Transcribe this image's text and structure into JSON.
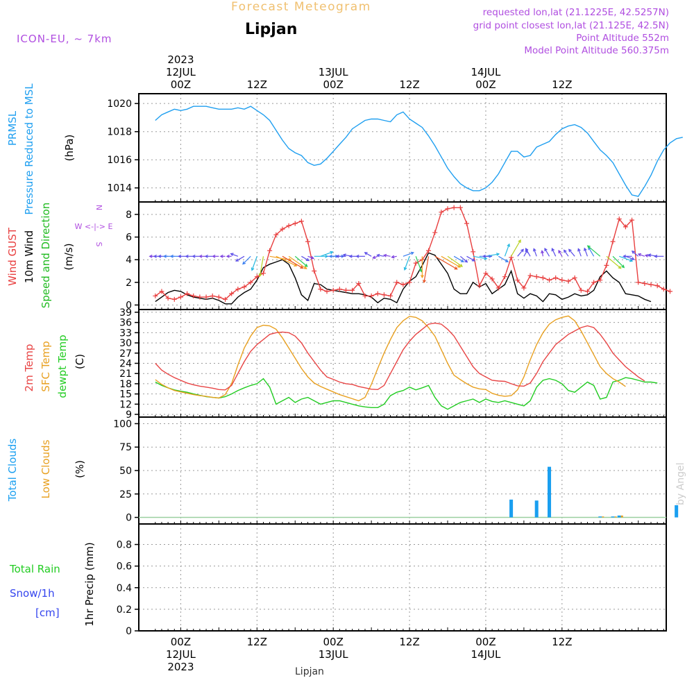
{
  "header": {
    "forecast_title": "Forecast Meteogram",
    "location": "Lipjan",
    "model": "ICON-EU, ~ 7km",
    "requested": "requested lon,lat (21.1225E, 42.5257N)",
    "grid_point": "grid point closest lon,lat (21.125E, 42.5N)",
    "point_altitude": "Point Altitude 552m",
    "model_altitude": "Model Point Altitude 560.375m"
  },
  "footer": {
    "location": "Lipjan",
    "credit": "by Angel"
  },
  "colors": {
    "pressure": "#1f9ff0",
    "gust": "#e83e3e",
    "wind": "#000000",
    "dirlabel": "#20bb20",
    "compass": "#b04ee0",
    "temp2m": "#e84444",
    "sfc": "#e8a020",
    "dewpt": "#22cc22",
    "cloud_total": "#1a9ff0",
    "cloud_low": "#e8a020",
    "rain": "#22cc22",
    "snow": "#3344ee",
    "header_purple": "#b04ee0",
    "header_orange": "#f0c070"
  },
  "chart_data": [
    {
      "type": "line",
      "title": "PRMSL Pressure Reduced to MSL",
      "ylabel": "(hPa)",
      "label_lines": [
        "PRMSL",
        "Pressure Reduced to MSL"
      ],
      "unit": "(hPa)",
      "ylim": [
        1013,
        1020.7
      ],
      "yticks": [
        1014,
        1016,
        1018,
        1020
      ],
      "x_start_hour": -4,
      "x_step_hours": 1,
      "series": [
        {
          "name": "PRMSL",
          "values": [
            1018.8,
            1019.2,
            1019.4,
            1019.6,
            1019.5,
            1019.6,
            1019.8,
            1019.8,
            1019.8,
            1019.7,
            1019.6,
            1019.6,
            1019.6,
            1019.7,
            1019.6,
            1019.8,
            1019.5,
            1019.2,
            1018.8,
            1018.1,
            1017.4,
            1016.8,
            1016.5,
            1016.3,
            1015.8,
            1015.6,
            1015.7,
            1016.1,
            1016.6,
            1017.1,
            1017.6,
            1018.2,
            1018.5,
            1018.8,
            1018.9,
            1018.9,
            1018.8,
            1018.7,
            1019.2,
            1019.4,
            1018.9,
            1018.6,
            1018.3,
            1017.7,
            1017.0,
            1016.2,
            1015.4,
            1014.8,
            1014.3,
            1014.0,
            1013.8,
            1013.8,
            1014.0,
            1014.4,
            1015.0,
            1015.8,
            1016.6,
            1016.6,
            1016.2,
            1016.3,
            1016.9,
            1017.1,
            1017.3,
            1017.8,
            1018.2,
            1018.4,
            1018.5,
            1018.3,
            1017.9,
            1017.3,
            1016.7,
            1016.3,
            1015.8,
            1015.0,
            1014.2,
            1013.5,
            1013.4,
            1014.1,
            1014.9,
            1015.9,
            1016.7,
            1017.2,
            1017.5,
            1017.6
          ]
        }
      ]
    },
    {
      "type": "line",
      "title": "Wind GUST / 10m Wind Speed and Direction",
      "ylabel": "(m/s)",
      "label_lines": [
        "Wind GUST",
        "10m Wind",
        "Speed and Direction"
      ],
      "unit": "(m/s)",
      "compass": [
        "N",
        "W <-|-> E",
        "S"
      ],
      "ylim": [
        -0.4,
        9.1
      ],
      "yticks": [
        0,
        2,
        4,
        6,
        8
      ],
      "x_start_hour": -4,
      "x_step_hours": 1,
      "series": [
        {
          "name": "Wind GUST",
          "values": [
            0.8,
            1.2,
            0.6,
            0.5,
            0.7,
            1.0,
            0.8,
            0.7,
            0.7,
            0.8,
            0.7,
            0.5,
            1.0,
            1.4,
            1.6,
            2.0,
            2.5,
            2.8,
            4.8,
            6.2,
            6.7,
            7.0,
            7.2,
            7.4,
            5.6,
            3.0,
            1.4,
            1.2,
            1.3,
            1.4,
            1.3,
            1.3,
            1.9,
            0.8,
            0.8,
            1.0,
            0.9,
            0.8,
            2.0,
            1.8,
            2.0,
            3.7,
            4.0,
            4.8,
            6.4,
            8.2,
            8.5,
            8.6,
            8.6,
            7.2,
            4.7,
            1.7,
            2.8,
            2.3,
            1.5,
            2.5,
            4.2,
            2.2,
            1.5,
            2.6,
            2.5,
            2.4,
            2.2,
            2.4,
            2.2,
            2.1,
            2.4,
            1.3,
            1.2,
            2.0,
            2.2,
            3.5,
            5.6,
            7.6,
            6.9,
            7.5,
            2.0,
            1.9,
            1.8,
            1.7,
            1.4,
            1.2
          ]
        },
        {
          "name": "10m Wind",
          "values": [
            0.3,
            0.7,
            1.1,
            1.3,
            1.2,
            0.9,
            0.7,
            0.6,
            0.5,
            0.6,
            0.4,
            0.1,
            0.1,
            0.7,
            1.1,
            1.4,
            2.2,
            3.3,
            3.6,
            3.8,
            4.0,
            3.6,
            2.4,
            0.9,
            0.4,
            1.9,
            1.8,
            1.4,
            1.3,
            1.2,
            1.1,
            1.0,
            1.0,
            0.9,
            0.7,
            0.2,
            0.6,
            0.5,
            0.2,
            1.4,
            2.1,
            2.5,
            3.5,
            4.6,
            4.4,
            3.6,
            2.8,
            1.4,
            1.0,
            1.0,
            2.0,
            1.6,
            1.9,
            1.0,
            1.4,
            1.8,
            3.0,
            1.0,
            0.6,
            1.0,
            0.8,
            0.3,
            1.0,
            0.9,
            0.5,
            0.7,
            1.0,
            0.8,
            0.9,
            1.3,
            2.5,
            3.0,
            2.4,
            2.0,
            1.0,
            0.9,
            0.8,
            0.5,
            0.3
          ]
        }
      ],
      "wind_direction_deg": [
        90,
        90,
        90,
        90,
        90,
        90,
        90,
        90,
        90,
        90,
        90,
        90,
        90,
        110,
        60,
        45,
        20,
        10,
        280,
        295,
        300,
        305,
        310,
        300,
        290,
        270,
        250,
        270,
        270,
        90,
        90,
        100,
        90,
        90,
        120,
        70,
        100,
        100,
        80,
        250,
        20,
        340,
        360,
        10,
        300,
        300,
        305,
        300,
        310,
        300,
        280,
        270,
        260,
        90,
        300,
        200,
        210,
        220,
        210,
        150,
        160,
        170,
        150,
        155,
        150,
        145,
        140,
        160,
        160,
        150,
        130,
        310,
        315,
        290,
        290,
        90,
        130,
        110,
        100,
        100,
        90
      ]
    },
    {
      "type": "line",
      "title": "2m Temp / SFC Temp / dewpt Temp",
      "ylabel": "(C)",
      "label_lines": [
        "2m Temp",
        "SFC Temp",
        "dewpt Temp"
      ],
      "unit": "(C)",
      "ylim": [
        8.2,
        39.8
      ],
      "yticks": [
        9,
        12,
        15,
        18,
        21,
        24,
        27,
        30,
        33,
        36,
        39
      ],
      "x_start_hour": -4,
      "x_step_hours": 1,
      "series": [
        {
          "name": "2m Temp",
          "values": [
            24.0,
            22.0,
            20.8,
            19.8,
            19.0,
            18.2,
            17.7,
            17.3,
            17.0,
            16.7,
            16.3,
            16.2,
            17.5,
            21.0,
            24.5,
            27.5,
            29.5,
            31.0,
            32.5,
            33.0,
            33.2,
            33.0,
            32.0,
            30.0,
            27.0,
            24.5,
            22.0,
            20.0,
            19.3,
            18.5,
            18.0,
            17.8,
            17.2,
            16.8,
            16.4,
            16.3,
            17.5,
            21.0,
            24.5,
            28.0,
            30.5,
            32.5,
            34.0,
            35.5,
            35.8,
            35.5,
            34.0,
            32.0,
            29.0,
            26.0,
            23.0,
            21.0,
            20.0,
            19.0,
            18.8,
            18.7,
            18.0,
            17.4,
            17.3,
            18.2,
            21.0,
            24.5,
            27.0,
            29.5,
            31.0,
            32.5,
            33.5,
            34.5,
            35.0,
            34.5,
            32.5,
            30.0,
            27.0,
            25.0,
            23.0,
            21.5,
            20.0,
            18.8
          ]
        },
        {
          "name": "SFC Temp",
          "values": [
            19.2,
            17.8,
            16.8,
            16.0,
            15.6,
            15.2,
            14.8,
            14.5,
            14.3,
            14.0,
            13.8,
            14.8,
            18.0,
            23.5,
            28.5,
            32.0,
            34.5,
            35.2,
            35.0,
            34.0,
            31.5,
            28.5,
            25.5,
            22.5,
            20.0,
            18.2,
            17.2,
            16.4,
            15.6,
            14.8,
            14.2,
            13.6,
            13.0,
            14.0,
            17.8,
            22.5,
            27.0,
            31.0,
            34.5,
            36.5,
            37.8,
            37.5,
            36.5,
            34.5,
            32.0,
            28.0,
            24.0,
            20.5,
            19.2,
            18.0,
            17.0,
            16.5,
            16.3,
            15.2,
            14.6,
            14.3,
            14.5,
            16.2,
            20.0,
            25.0,
            29.5,
            33.0,
            35.5,
            36.8,
            37.5,
            37.9,
            36.5,
            33.5,
            30.0,
            26.5,
            23.0,
            21.0,
            19.5,
            18.5,
            17.2
          ]
        },
        {
          "name": "dewpt Temp",
          "values": [
            18.5,
            17.5,
            16.8,
            16.2,
            15.8,
            15.5,
            15.0,
            14.6,
            14.2,
            14.0,
            13.8,
            14.2,
            15.0,
            16.0,
            16.8,
            17.5,
            18.0,
            19.5,
            17.0,
            12.0,
            13.0,
            14.0,
            12.5,
            13.5,
            14.0,
            13.0,
            12.0,
            12.5,
            13.0,
            13.0,
            12.5,
            12.0,
            11.5,
            11.2,
            11.0,
            11.0,
            12.0,
            14.5,
            15.5,
            16.0,
            17.0,
            16.2,
            16.8,
            17.5,
            14.0,
            11.5,
            10.5,
            11.5,
            12.5,
            13.0,
            13.5,
            12.5,
            13.5,
            12.8,
            12.5,
            13.0,
            12.5,
            12.0,
            11.5,
            13.0,
            17.0,
            19.0,
            19.5,
            19.0,
            18.0,
            16.0,
            15.5,
            17.0,
            18.5,
            17.5,
            13.5,
            14.0,
            18.5,
            19.0,
            19.8,
            19.5,
            19.0,
            18.5,
            18.5,
            18.2
          ]
        }
      ]
    },
    {
      "type": "bar",
      "title": "Total Clouds / Low Clouds",
      "ylabel": "(%)",
      "label_lines": [
        "Total Clouds",
        "Low Clouds"
      ],
      "unit": "(%)",
      "ylim": [
        -7,
        107
      ],
      "yticks": [
        0,
        25,
        50,
        75,
        100
      ],
      "x_start_hour": -4,
      "x_step_hours": 1,
      "series": [
        {
          "name": "Total Clouds",
          "values": [
            0,
            0,
            0,
            0,
            0,
            0,
            0,
            0,
            0,
            0,
            0,
            0,
            0,
            0,
            0,
            0,
            0,
            0,
            0,
            0,
            0,
            0,
            0,
            0,
            0,
            0,
            0,
            0,
            0,
            0,
            0,
            0,
            0,
            0,
            0,
            0,
            0,
            0,
            0,
            0,
            0,
            0,
            0,
            0,
            0,
            0,
            0,
            0,
            0,
            0,
            0,
            0,
            0,
            0,
            0,
            0,
            19,
            0,
            0,
            0,
            18,
            0,
            54,
            0,
            0,
            0,
            0,
            0,
            0,
            0,
            1,
            0,
            1,
            2,
            0,
            0,
            0,
            0,
            0,
            0,
            0,
            0,
            13,
            0
          ]
        },
        {
          "name": "Low Clouds",
          "values": [
            0,
            0,
            0,
            0,
            0,
            0,
            0,
            0,
            0,
            0,
            0,
            0,
            0,
            0,
            0,
            0,
            0,
            0,
            0,
            0,
            0,
            0,
            0,
            0,
            0,
            0,
            0,
            0,
            0,
            0,
            0,
            0,
            0,
            0,
            0,
            0,
            0,
            0,
            0,
            0,
            0,
            0,
            0,
            0,
            0,
            0,
            0,
            0,
            0,
            0,
            0,
            0,
            0,
            0,
            0,
            0,
            0,
            0,
            0,
            0,
            0,
            0,
            0,
            0,
            0,
            0,
            0,
            0,
            0,
            0,
            1,
            0,
            1,
            2,
            0,
            0,
            0,
            0,
            0,
            0,
            0,
            0,
            0,
            0
          ]
        }
      ]
    },
    {
      "type": "bar",
      "title": "1hr Precip (mm)",
      "ylabel": "1hr Precip (mm)",
      "label_lines": [
        "Total  Rain",
        "Snow/1h",
        "[cm]"
      ],
      "unit": "1hr Precip (mm)",
      "ylim": [
        0,
        0.99
      ],
      "yticks": [
        0,
        0.2,
        0.4,
        0.6,
        0.8
      ],
      "ytick_labels": [
        "0",
        "0.2",
        "0.4",
        "0.6",
        "0.8"
      ],
      "series": [
        {
          "name": "Total Rain",
          "values": []
        },
        {
          "name": "Snow/1h",
          "values": []
        }
      ]
    }
  ],
  "time_axis": {
    "top_labels": [
      {
        "hour": 0,
        "lines": [
          "2023",
          "12JUL",
          "00Z"
        ]
      },
      {
        "hour": 12,
        "lines": [
          "",
          "",
          "12Z"
        ]
      },
      {
        "hour": 24,
        "lines": [
          "",
          "13JUL",
          "00Z"
        ]
      },
      {
        "hour": 36,
        "lines": [
          "",
          "",
          "12Z"
        ]
      },
      {
        "hour": 48,
        "lines": [
          "",
          "14JUL",
          "00Z"
        ]
      },
      {
        "hour": 60,
        "lines": [
          "",
          "",
          "12Z"
        ]
      }
    ],
    "bottom_labels": [
      {
        "hour": 0,
        "lines": [
          "00Z",
          "12JUL",
          "2023"
        ]
      },
      {
        "hour": 12,
        "lines": [
          "12Z",
          "",
          ""
        ]
      },
      {
        "hour": 24,
        "lines": [
          "00Z",
          "13JUL",
          ""
        ]
      },
      {
        "hour": 36,
        "lines": [
          "12Z",
          "",
          ""
        ]
      },
      {
        "hour": 48,
        "lines": [
          "00Z",
          "14JUL",
          ""
        ]
      },
      {
        "hour": 60,
        "lines": [
          "12Z",
          "",
          ""
        ]
      }
    ],
    "grid_hours": [
      0,
      12,
      24,
      36,
      48,
      60
    ]
  }
}
